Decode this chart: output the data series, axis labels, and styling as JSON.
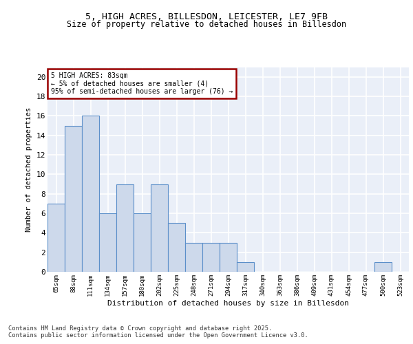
{
  "title1": "5, HIGH ACRES, BILLESDON, LEICESTER, LE7 9FB",
  "title2": "Size of property relative to detached houses in Billesdon",
  "xlabel": "Distribution of detached houses by size in Billesdon",
  "ylabel": "Number of detached properties",
  "categories": [
    "65sqm",
    "88sqm",
    "111sqm",
    "134sqm",
    "157sqm",
    "180sqm",
    "202sqm",
    "225sqm",
    "248sqm",
    "271sqm",
    "294sqm",
    "317sqm",
    "340sqm",
    "363sqm",
    "386sqm",
    "409sqm",
    "431sqm",
    "454sqm",
    "477sqm",
    "500sqm",
    "523sqm"
  ],
  "values": [
    7,
    15,
    16,
    6,
    9,
    6,
    9,
    5,
    3,
    3,
    3,
    1,
    0,
    0,
    0,
    0,
    0,
    0,
    0,
    1,
    0
  ],
  "bar_color": "#cdd9eb",
  "bar_edge_color": "#5b8fc9",
  "background_color": "#eaeff8",
  "grid_color": "#ffffff",
  "annotation_text": "5 HIGH ACRES: 83sqm\n← 5% of detached houses are smaller (4)\n95% of semi-detached houses are larger (76) →",
  "annotation_box_color": "#ffffff",
  "annotation_box_edge": "#990000",
  "footer": "Contains HM Land Registry data © Crown copyright and database right 2025.\nContains public sector information licensed under the Open Government Licence v3.0.",
  "ylim": [
    0,
    21
  ],
  "yticks": [
    0,
    2,
    4,
    6,
    8,
    10,
    12,
    14,
    16,
    18,
    20
  ]
}
